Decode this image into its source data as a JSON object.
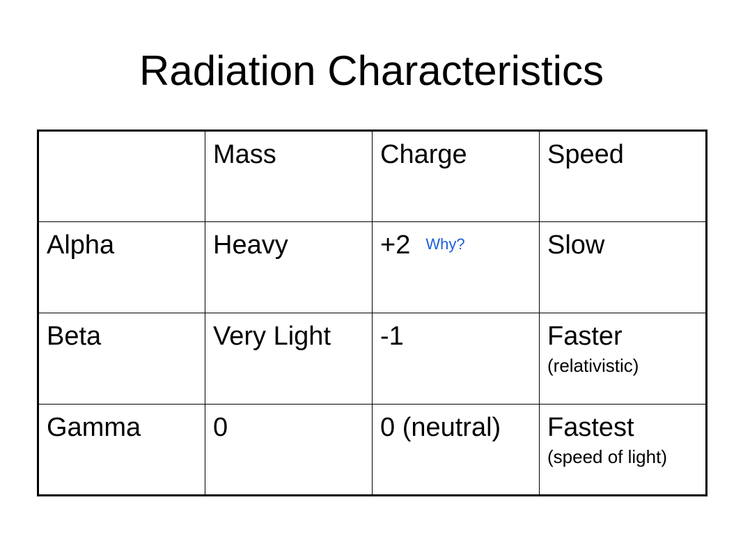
{
  "title": "Radiation Characteristics",
  "table": {
    "headers": [
      "",
      "Mass",
      "Charge",
      "Speed"
    ],
    "rows": [
      {
        "label": "Alpha",
        "mass": "Heavy",
        "charge": "+2",
        "charge_note": "Why?",
        "speed": "Slow",
        "speed_note": ""
      },
      {
        "label": "Beta",
        "mass": "Very Light",
        "charge": "-1",
        "charge_note": "",
        "speed": "Faster",
        "speed_note": "(relativistic)"
      },
      {
        "label": "Gamma",
        "mass": "0",
        "charge": "0 (neutral)",
        "charge_note": "",
        "speed": "Fastest",
        "speed_note": "(speed of light)"
      }
    ]
  },
  "colors": {
    "text": "#000000",
    "note": "#1a5fd6",
    "background": "#ffffff"
  }
}
